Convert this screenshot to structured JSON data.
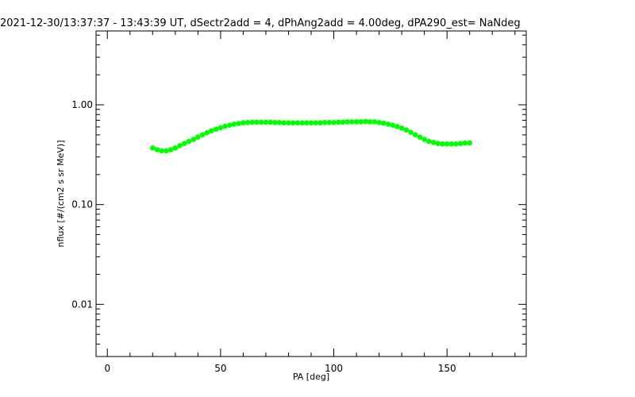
{
  "chart_data": {
    "type": "scatter",
    "title": "2021-12-30/13:37:37 - 13:43:39 UT, dSectr2add = 4, dPhAng2add = 4.00deg, dPA290_est=   NaNdeg",
    "xlabel": "PA [deg]",
    "ylabel": "nflux [#/(cm2 s sr MeV)]",
    "xlim": [
      -5,
      185
    ],
    "ylim": [
      0.003,
      5.5
    ],
    "yscale": "log",
    "x_ticks": [
      0,
      50,
      100,
      150
    ],
    "x_tick_labels": [
      "0",
      "50",
      "100",
      "150"
    ],
    "y_ticks": [
      0.01,
      0.1,
      1.0
    ],
    "y_tick_labels": [
      "0.01",
      "0.10",
      "1.00"
    ],
    "marker_color": "#00ff00",
    "x": [
      20,
      22,
      24,
      26,
      28,
      30,
      32,
      34,
      36,
      38,
      40,
      42,
      44,
      46,
      48,
      50,
      52,
      54,
      56,
      58,
      60,
      62,
      64,
      66,
      68,
      70,
      72,
      74,
      76,
      78,
      80,
      82,
      84,
      86,
      88,
      90,
      92,
      94,
      96,
      98,
      100,
      102,
      104,
      106,
      108,
      110,
      112,
      114,
      116,
      118,
      120,
      122,
      124,
      126,
      128,
      130,
      132,
      134,
      136,
      138,
      140,
      142,
      144,
      146,
      148,
      150,
      152,
      154,
      156,
      158,
      160
    ],
    "y": [
      0.37,
      0.355,
      0.345,
      0.345,
      0.355,
      0.37,
      0.39,
      0.41,
      0.43,
      0.45,
      0.475,
      0.5,
      0.525,
      0.55,
      0.57,
      0.59,
      0.61,
      0.625,
      0.64,
      0.65,
      0.66,
      0.665,
      0.67,
      0.67,
      0.67,
      0.67,
      0.67,
      0.665,
      0.665,
      0.66,
      0.66,
      0.66,
      0.66,
      0.66,
      0.66,
      0.66,
      0.66,
      0.66,
      0.665,
      0.665,
      0.665,
      0.67,
      0.67,
      0.675,
      0.675,
      0.675,
      0.675,
      0.68,
      0.675,
      0.675,
      0.665,
      0.655,
      0.64,
      0.625,
      0.605,
      0.585,
      0.56,
      0.53,
      0.5,
      0.475,
      0.45,
      0.43,
      0.42,
      0.41,
      0.405,
      0.405,
      0.405,
      0.405,
      0.41,
      0.415,
      0.415
    ]
  }
}
